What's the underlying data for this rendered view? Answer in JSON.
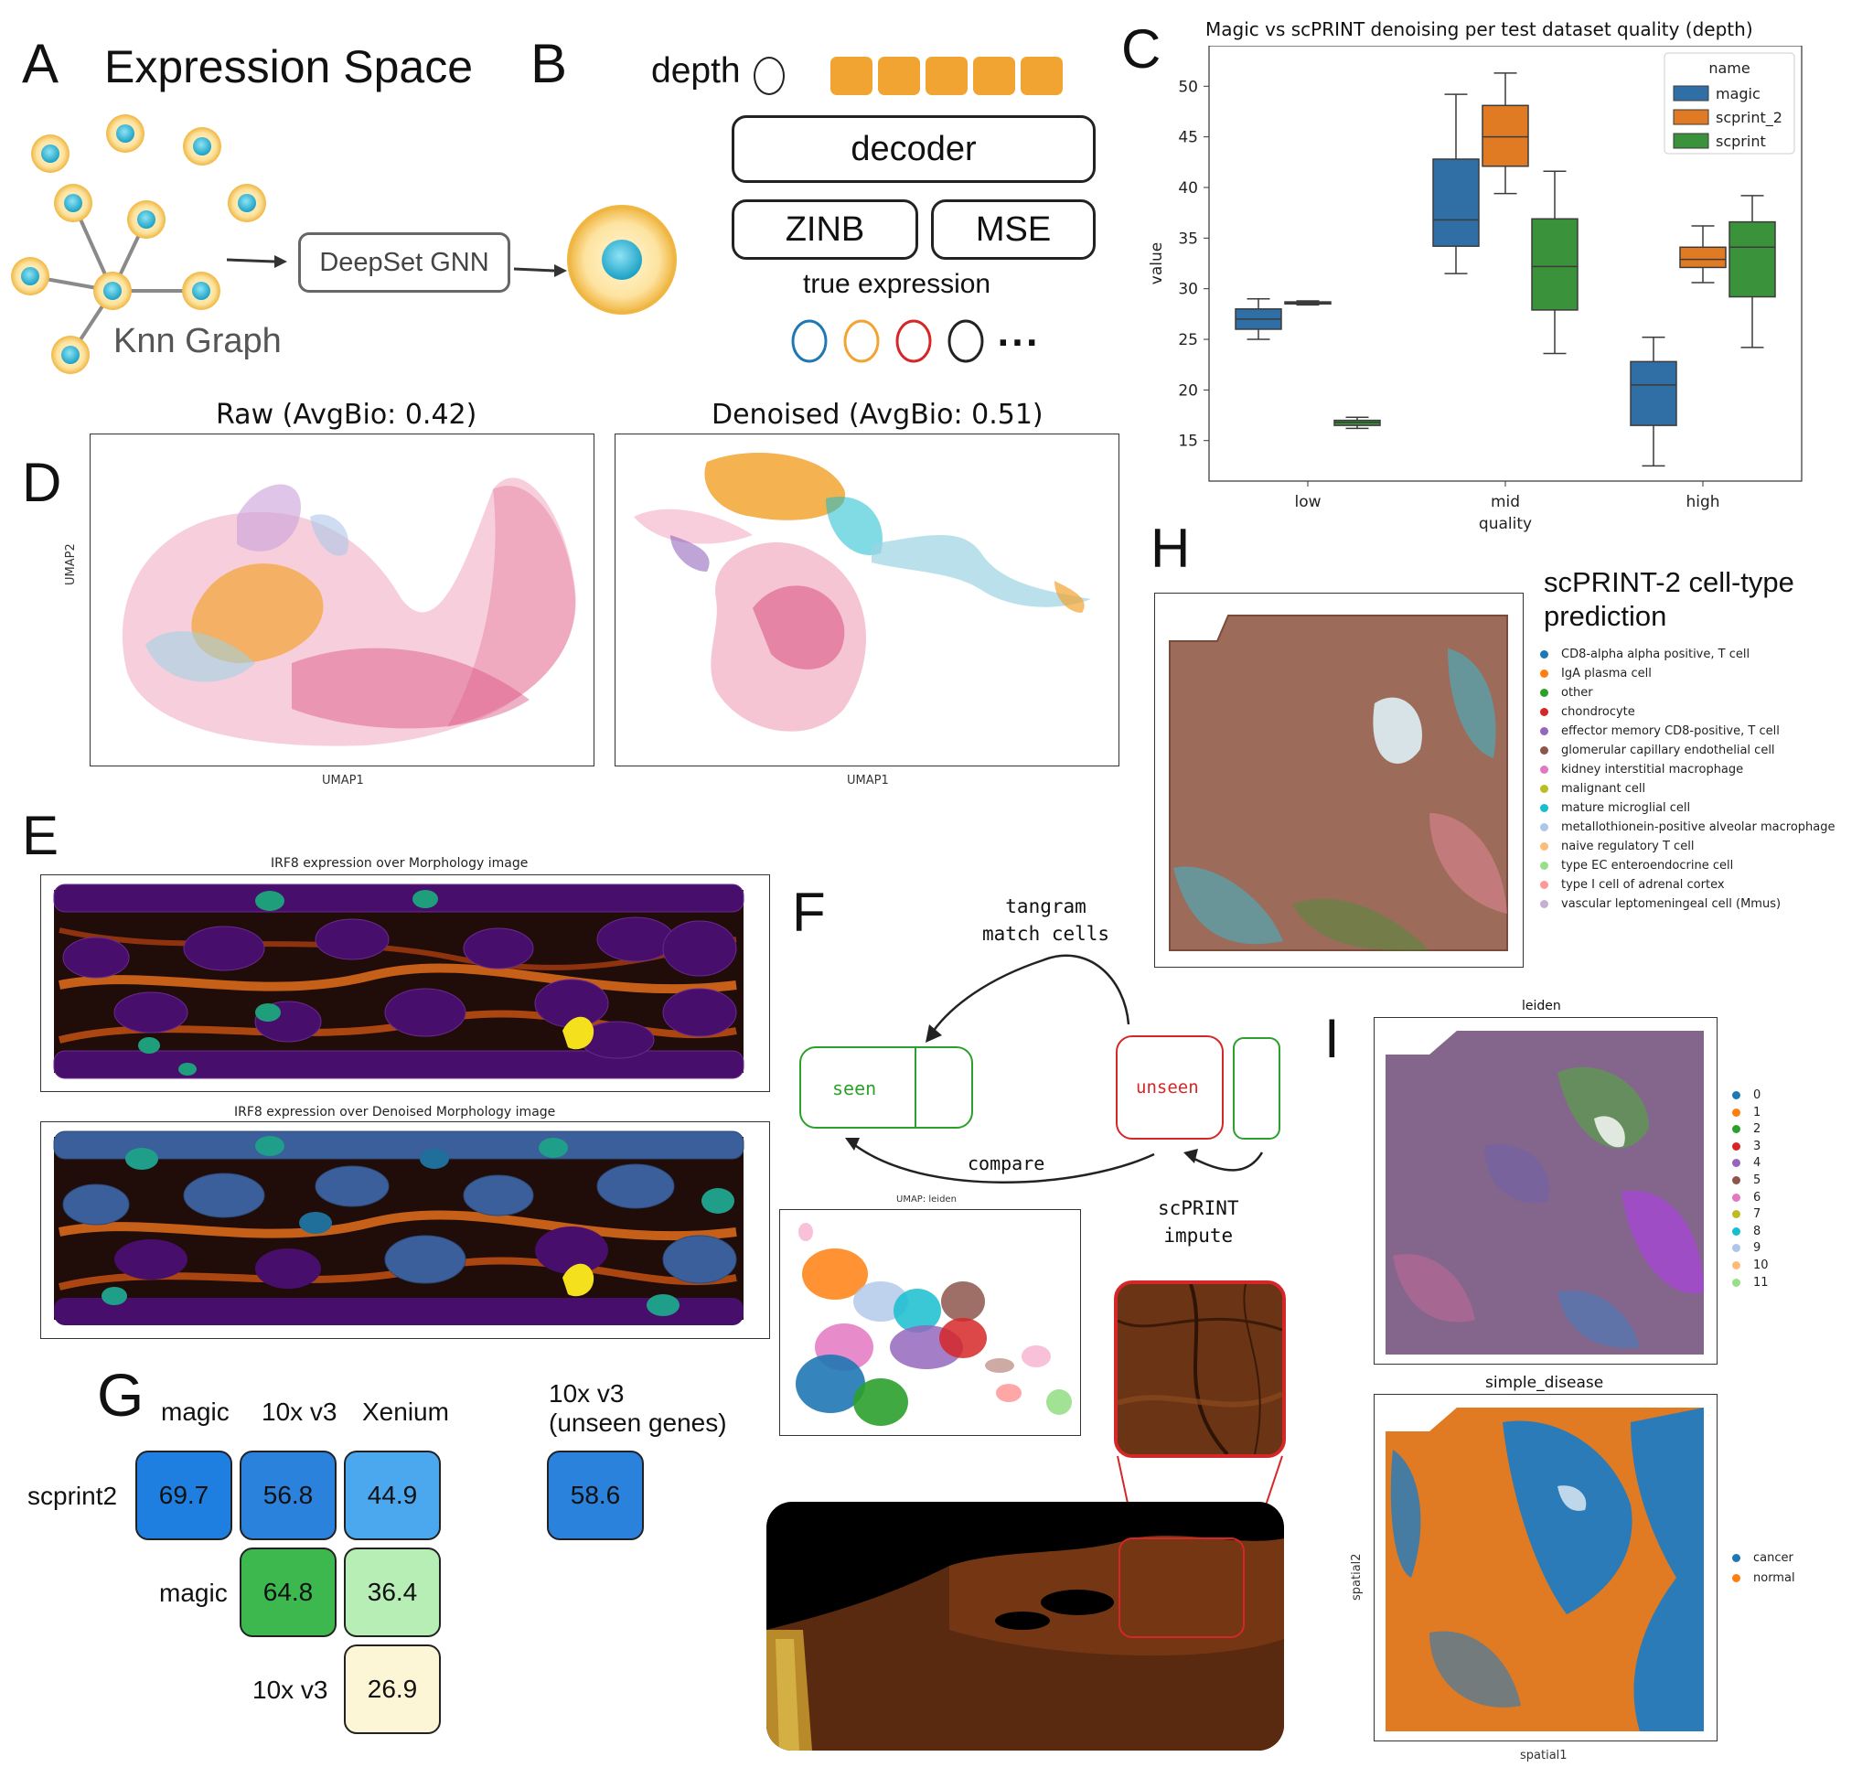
{
  "panels": {
    "A": "A",
    "B": "B",
    "C": "C",
    "D": "D",
    "E": "E",
    "F": "F",
    "G": "G",
    "H": "H",
    "I": "I"
  },
  "panel_a": {
    "title": "Expression Space",
    "gnn_label": "DeepSet GNN",
    "graph_label": "Knn Graph"
  },
  "panel_b": {
    "depth_label": "depth",
    "decoder_label": "decoder",
    "zinb_label": "ZINB",
    "mse_label": "MSE",
    "true_label": "true expression",
    "ellipsis": "...",
    "circle_colors": [
      "#1f77b4",
      "#f2a432",
      "#d62728",
      "#222222"
    ]
  },
  "panel_c": {
    "chart_data": {
      "type": "box",
      "title": "Magic vs scPRINT denoising per test dataset quality (depth)",
      "xlabel": "quality",
      "ylabel": "value",
      "categories": [
        "low",
        "mid",
        "high"
      ],
      "ylim": [
        11,
        54
      ],
      "yticks": [
        15,
        20,
        25,
        30,
        35,
        40,
        45,
        50
      ],
      "legend_title": "name",
      "series": [
        {
          "name": "magic",
          "color": "#2f6fa5",
          "boxes": [
            {
              "min": 25,
              "q1": 26,
              "median": 27,
              "q3": 28,
              "max": 29
            },
            {
              "min": 31.5,
              "q1": 34.2,
              "median": 36.8,
              "q3": 42.8,
              "max": 49.2
            },
            {
              "min": 12.5,
              "q1": 16.5,
              "median": 20.5,
              "q3": 22.8,
              "max": 25.2
            }
          ]
        },
        {
          "name": "scprint_2",
          "color": "#e07b24",
          "boxes": [
            {
              "min": 28.4,
              "q1": 28.5,
              "median": 28.6,
              "q3": 28.7,
              "max": 28.8
            },
            {
              "min": 39.4,
              "q1": 42.1,
              "median": 45,
              "q3": 48.1,
              "max": 51.3
            },
            {
              "min": 30.6,
              "q1": 32.1,
              "median": 32.9,
              "q3": 34.1,
              "max": 36.2
            }
          ]
        },
        {
          "name": "scprint",
          "color": "#3a923a",
          "boxes": [
            {
              "min": 16.2,
              "q1": 16.5,
              "median": 16.8,
              "q3": 17.0,
              "max": 17.3
            },
            {
              "min": 23.6,
              "q1": 27.9,
              "median": 32.2,
              "q3": 36.9,
              "max": 41.6
            },
            {
              "min": 24.2,
              "q1": 29.2,
              "median": 34.1,
              "q3": 36.6,
              "max": 39.2
            }
          ]
        }
      ]
    }
  },
  "panel_d": {
    "raw_title": "Raw (AvgBio: 0.42)",
    "denoised_title": "Denoised (AvgBio: 0.51)",
    "xlabel": "UMAP1",
    "ylabel": "UMAP2"
  },
  "panel_e": {
    "title_top": "IRF8 expression over Morphology image",
    "title_bottom": "IRF8 expression over Denoised Morphology image"
  },
  "panel_f": {
    "tangram": "tangram\nmatch cells",
    "seen": "seen",
    "unseen": "unseen",
    "compare": "compare",
    "impute": "scPRINT\nimpute",
    "umap_title": "UMAP: leiden"
  },
  "panel_g": {
    "col_headers": [
      "magic",
      "10x v3",
      "Xenium"
    ],
    "extra_header": "10x v3\n(unseen genes)",
    "row_labels": [
      "scprint2",
      "magic",
      "10x v3"
    ],
    "cells": [
      {
        "value": "69.7",
        "color": "#1f7fe0"
      },
      {
        "value": "56.8",
        "color": "#2b82dc"
      },
      {
        "value": "44.9",
        "color": "#4ba8ef"
      },
      {
        "value": "64.8",
        "color": "#3cb84e"
      },
      {
        "value": "36.4",
        "color": "#b7eeb6"
      },
      {
        "value": "26.9",
        "color": "#fdf6d6"
      }
    ],
    "extra_cell": {
      "value": "58.6",
      "color": "#2b82dc"
    }
  },
  "panel_h": {
    "title": "scPRINT-2 cell-type prediction",
    "legend": [
      {
        "label": "CD8-alpha alpha positive, T cell",
        "color": "#1f77b4"
      },
      {
        "label": "IgA plasma cell",
        "color": "#ff7f0e"
      },
      {
        "label": "other",
        "color": "#2ca02c"
      },
      {
        "label": "chondrocyte",
        "color": "#d62728"
      },
      {
        "label": "effector memory CD8-positive, T cell",
        "color": "#9467bd"
      },
      {
        "label": "glomerular capillary endothelial cell",
        "color": "#8c564b"
      },
      {
        "label": "kidney interstitial macrophage",
        "color": "#e377c2"
      },
      {
        "label": "malignant cell",
        "color": "#bcbd22"
      },
      {
        "label": "mature microglial cell",
        "color": "#17becf"
      },
      {
        "label": "metallothionein-positive alveolar macrophage",
        "color": "#aec7e8"
      },
      {
        "label": "naive regulatory T cell",
        "color": "#ffbb78"
      },
      {
        "label": "type EC enteroendocrine cell",
        "color": "#98df8a"
      },
      {
        "label": "type I cell of adrenal cortex",
        "color": "#ff9896"
      },
      {
        "label": "vascular leptomeningeal cell (Mmus)",
        "color": "#c5b0d5"
      }
    ]
  },
  "panel_i": {
    "leiden_title": "leiden",
    "leiden_legend": [
      {
        "label": "0",
        "color": "#1f77b4"
      },
      {
        "label": "1",
        "color": "#ff7f0e"
      },
      {
        "label": "2",
        "color": "#2ca02c"
      },
      {
        "label": "3",
        "color": "#d62728"
      },
      {
        "label": "4",
        "color": "#9467bd"
      },
      {
        "label": "5",
        "color": "#8c564b"
      },
      {
        "label": "6",
        "color": "#e377c2"
      },
      {
        "label": "7",
        "color": "#bcbd22"
      },
      {
        "label": "8",
        "color": "#17becf"
      },
      {
        "label": "9",
        "color": "#aec7e8"
      },
      {
        "label": "10",
        "color": "#ffbb78"
      },
      {
        "label": "11",
        "color": "#98df8a"
      }
    ],
    "disease_title": "simple_disease",
    "disease_legend": [
      {
        "label": "cancer",
        "color": "#1f77b4"
      },
      {
        "label": "normal",
        "color": "#ff7f0e"
      }
    ],
    "xlabel": "spatial1",
    "ylabel": "spatial2"
  }
}
